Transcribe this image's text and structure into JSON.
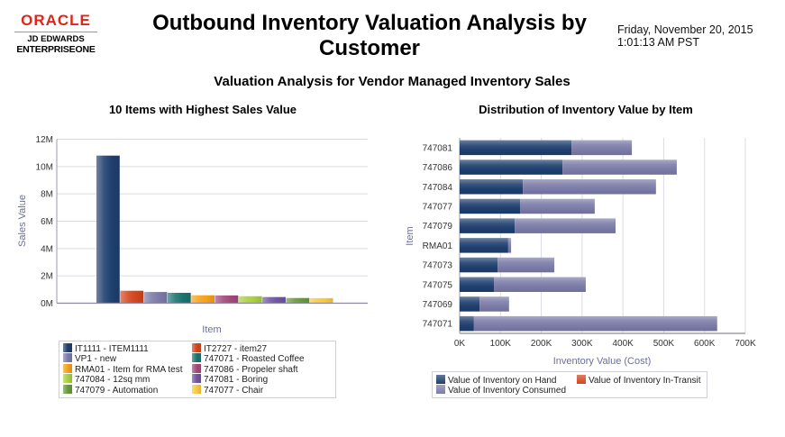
{
  "header": {
    "logo": {
      "brand": "ORACLE",
      "line1": "JD EDWARDS",
      "line2": "ENTERPRISEONE"
    },
    "title": "Outbound Inventory Valuation Analysis by Customer",
    "date": "Friday, November 20, 2015",
    "time": "1:01:13 AM PST",
    "subtitle": "Valuation Analysis for Vendor Managed Inventory Sales"
  },
  "chart_data": [
    {
      "type": "bar",
      "title": "10 Items with Highest Sales Value",
      "xlabel": "Item",
      "ylabel": "Sales Value",
      "ylim": [
        0,
        12000000
      ],
      "yticks": [
        "0M",
        "2M",
        "4M",
        "6M",
        "8M",
        "10M",
        "12M"
      ],
      "grid": true,
      "legend_position": "bottom",
      "categories": [
        "IT1111 - ITEM1111",
        "IT2727 - item27",
        "VP1 - new",
        "747071 - Roasted Coffee",
        "RMA01 - Item for RMA test",
        "747086 - Propeler shaft",
        "747084 - 12sq mm",
        "747081 - Boring",
        "747079 - Automation",
        "747077 - Chair"
      ],
      "values": [
        10800000,
        910000,
        820000,
        760000,
        580000,
        570000,
        510000,
        450000,
        380000,
        370000
      ],
      "colors": [
        "#1f3f6e",
        "#d2461e",
        "#7b7ba8",
        "#1b7472",
        "#f5a01a",
        "#a34a78",
        "#a8d040",
        "#6f56a0",
        "#6a9a3c",
        "#f8c93c"
      ]
    },
    {
      "type": "bar",
      "orientation": "horizontal",
      "stacked": true,
      "title": "Distribution of Inventory Value by Item",
      "xlabel": "Inventory Value (Cost)",
      "ylabel": "Item",
      "xlim": [
        0,
        700000
      ],
      "xticks": [
        "0K",
        "100K",
        "200K",
        "300K",
        "400K",
        "500K",
        "600K",
        "700K"
      ],
      "grid": true,
      "legend_position": "bottom",
      "categories": [
        "747081",
        "747086",
        "747084",
        "747077",
        "747079",
        "RMA01",
        "747073",
        "747075",
        "747069",
        "747071"
      ],
      "series": [
        {
          "name": "Value of Inventory on Hand",
          "color": "#1f3f6e",
          "values": [
            274000,
            252000,
            155000,
            148000,
            135000,
            119000,
            93000,
            84000,
            49000,
            35000
          ]
        },
        {
          "name": "Value of Inventory In-Transit",
          "color": "#d2461e",
          "values": [
            0,
            0,
            0,
            0,
            0,
            0,
            0,
            0,
            0,
            0
          ]
        },
        {
          "name": "Value of Inventory Consumed",
          "color": "#7b7ba8",
          "values": [
            148000,
            280000,
            326000,
            183000,
            247000,
            7000,
            139000,
            225000,
            72000,
            596000
          ]
        }
      ]
    }
  ]
}
